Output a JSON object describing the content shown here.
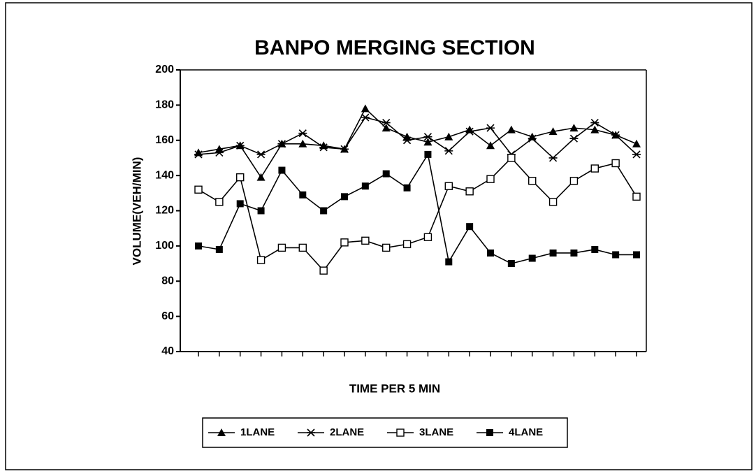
{
  "chart_data": {
    "type": "line",
    "title": "BANPO MERGING SECTION",
    "x_label": "TIME PER 5 MIN",
    "y_label": "VOLUME(VEH/MIN)",
    "categories": [
      null,
      null,
      null,
      null,
      null,
      null,
      null,
      null,
      null,
      null,
      null,
      null,
      null,
      null,
      null,
      null,
      null,
      null,
      null,
      null,
      null,
      null
    ],
    "series": [
      {
        "name": "1LANE",
        "color": "#000000",
        "marker": "triangle",
        "values": [
          153,
          155,
          157,
          139,
          158,
          158,
          157,
          155,
          178,
          167,
          162,
          159,
          162,
          166,
          157,
          166,
          162,
          165,
          167,
          166,
          163,
          158
        ]
      },
      {
        "name": "2LANE",
        "color": "#000000",
        "marker": "star",
        "values": [
          152,
          153,
          157,
          152,
          158,
          164,
          156,
          155,
          173,
          170,
          160,
          162,
          154,
          165,
          167,
          152,
          161,
          150,
          161,
          170,
          163,
          152
        ]
      },
      {
        "name": "3LANE",
        "color": "#000000",
        "marker": "open-square",
        "values": [
          132,
          125,
          139,
          92,
          99,
          99,
          86,
          102,
          103,
          99,
          101,
          105,
          134,
          131,
          138,
          150,
          137,
          125,
          137,
          144,
          147,
          128
        ]
      },
      {
        "name": "4LANE",
        "color": "#000000",
        "marker": "filled-square",
        "values": [
          100,
          98,
          124,
          120,
          143,
          129,
          120,
          128,
          134,
          141,
          133,
          152,
          91,
          111,
          96,
          90,
          93,
          96,
          96,
          98,
          95,
          95
        ]
      }
    ],
    "ylim": [
      40,
      200
    ],
    "yticks": [
      40,
      60,
      80,
      100,
      120,
      140,
      160,
      180,
      200
    ],
    "grid": false,
    "legend": "bottom"
  }
}
